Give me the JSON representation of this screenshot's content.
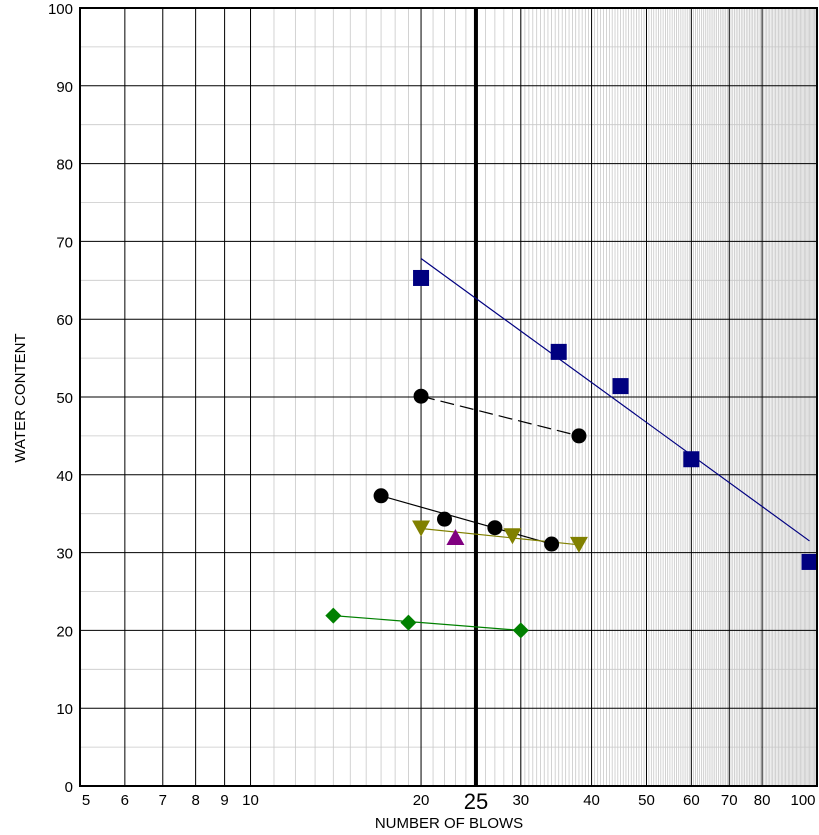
{
  "chart_data": {
    "type": "scatter",
    "title": "",
    "xlabel": "NUMBER OF BLOWS",
    "ylabel": "WATER CONTENT",
    "xscale": "log",
    "xlim": [
      5,
      100
    ],
    "ylim": [
      0,
      100
    ],
    "x_ticks": [
      5,
      6,
      7,
      8,
      9,
      10,
      20,
      25,
      30,
      40,
      50,
      60,
      70,
      80,
      100
    ],
    "x_tick_labels": [
      "5",
      "6",
      "7",
      "8",
      "9",
      "10",
      "20",
      "25",
      "30",
      "40",
      "50",
      "60",
      "70",
      "80",
      "100"
    ],
    "y_ticks": [
      0,
      10,
      20,
      30,
      40,
      50,
      60,
      70,
      80,
      90,
      100
    ],
    "y_tick_labels": [
      "0",
      "10",
      "20",
      "30",
      "40",
      "50",
      "60",
      "70",
      "80",
      "90",
      "100"
    ],
    "y_minor_step": 5,
    "highlight_x": 25,
    "grid": true,
    "series": [
      {
        "marker": "square",
        "color": "#000080",
        "points": [
          [
            20,
            65.3
          ],
          [
            35,
            55.8
          ],
          [
            45,
            51.4
          ],
          [
            60,
            42
          ],
          [
            97,
            28.8
          ]
        ],
        "trendline": [
          [
            20,
            67.8
          ],
          [
            97,
            31.5
          ]
        ],
        "line_style": "solid"
      },
      {
        "marker": "circle",
        "color": "#000000",
        "points": [
          [
            20,
            50.1
          ],
          [
            38,
            45
          ]
        ],
        "trendline": [
          [
            20,
            50.1
          ],
          [
            38,
            45
          ]
        ],
        "line_style": "dashed"
      },
      {
        "marker": "circle",
        "color": "#000000",
        "points": [
          [
            17,
            37.3
          ],
          [
            22,
            34.3
          ],
          [
            27,
            33.2
          ],
          [
            34,
            31.1
          ]
        ],
        "trendline": [
          [
            17,
            37.3
          ],
          [
            34,
            31.1
          ]
        ],
        "line_style": "solid"
      },
      {
        "marker": "triangle-down",
        "color": "#808000",
        "points": [
          [
            20,
            33.1
          ],
          [
            29,
            32.1
          ],
          [
            38,
            31
          ]
        ],
        "trendline": [
          [
            20,
            33.1
          ],
          [
            38,
            31
          ]
        ],
        "line_style": "solid"
      },
      {
        "marker": "triangle-up",
        "color": "#800080",
        "points": [
          [
            23,
            32
          ]
        ],
        "trendline": null,
        "line_style": "none"
      },
      {
        "marker": "diamond",
        "color": "#008000",
        "points": [
          [
            14,
            21.9
          ],
          [
            19,
            21
          ],
          [
            30,
            20
          ]
        ],
        "trendline": [
          [
            14,
            21.9
          ],
          [
            30,
            20
          ]
        ],
        "line_style": "solid"
      }
    ]
  }
}
